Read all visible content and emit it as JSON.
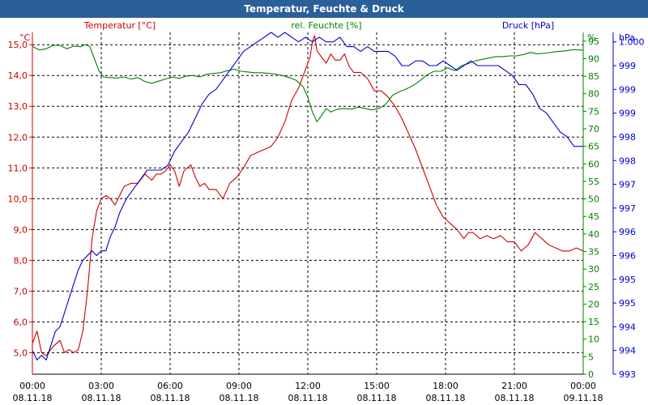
{
  "window": {
    "title": "Temperatur, Feuchte & Druck"
  },
  "chart_data": {
    "type": "line",
    "title": "Temperatur, Feuchte & Druck",
    "colors": {
      "temperature": "#cc0000",
      "humidity": "#008000",
      "pressure": "#0000cc",
      "grid": "#000000"
    },
    "x_ticks": [
      {
        "time": "00:00",
        "date": "08.11.18"
      },
      {
        "time": "03:00",
        "date": "08.11.18"
      },
      {
        "time": "06:00",
        "date": "08.11.18"
      },
      {
        "time": "09:00",
        "date": "08.11.18"
      },
      {
        "time": "12:00",
        "date": "08.11.18"
      },
      {
        "time": "15:00",
        "date": "08.11.18"
      },
      {
        "time": "18:00",
        "date": "08.11.18"
      },
      {
        "time": "21:00",
        "date": "08.11.18"
      },
      {
        "time": "00:00",
        "date": "09.11.18"
      }
    ],
    "xlim_hours": [
      0,
      24
    ],
    "axes": {
      "temperature": {
        "unit": "°C",
        "label": "Temperatur [°C]",
        "ylim": [
          4.3,
          15.4
        ],
        "ticks": [
          5.0,
          6.0,
          7.0,
          8.0,
          9.0,
          10.0,
          11.0,
          12.0,
          13.0,
          14.0,
          15.0
        ],
        "tick_labels": [
          "5,0",
          "6,0",
          "7,0",
          "8,0",
          "9,0",
          "10,0",
          "11,0",
          "12,0",
          "13,0",
          "14,0",
          "15,0"
        ]
      },
      "humidity": {
        "unit": "%",
        "label": "rel. Feuchte [%]",
        "ylim": [
          0,
          97.5
        ],
        "ticks": [
          0,
          5,
          10,
          15,
          20,
          25,
          30,
          35,
          40,
          45,
          50,
          55,
          60,
          65,
          70,
          75,
          80,
          85,
          90,
          95
        ],
        "tick_labels": [
          "0",
          "5",
          "10",
          "15",
          "20",
          "25",
          "30",
          "35",
          "40",
          "45",
          "50",
          "55",
          "60",
          "65",
          "70",
          "75",
          "80",
          "85",
          "90",
          "95"
        ]
      },
      "pressure": {
        "unit": "hPa",
        "label": "Druck [hPa]",
        "ylim": [
          993.0,
          1000.2
        ],
        "ticks": [
          993.0,
          993.5,
          994.0,
          994.5,
          995.0,
          995.5,
          996.0,
          996.5,
          997.0,
          997.5,
          998.0,
          998.5,
          999.0,
          999.5,
          1000.0
        ],
        "tick_labels": [
          "993",
          "994",
          "994",
          "995",
          "995",
          "996",
          "996",
          "997",
          "997",
          "998",
          "998",
          "999",
          "999",
          "999",
          "1.000"
        ]
      }
    },
    "series": [
      {
        "name": "Temperatur [°C]",
        "axis": "temperature",
        "points": [
          [
            0,
            5.3
          ],
          [
            0.2,
            5.7
          ],
          [
            0.4,
            5.0
          ],
          [
            0.6,
            4.9
          ],
          [
            0.9,
            5.2
          ],
          [
            1.2,
            5.4
          ],
          [
            1.4,
            5.0
          ],
          [
            1.6,
            5.1
          ],
          [
            1.8,
            5.0
          ],
          [
            2.0,
            5.1
          ],
          [
            2.2,
            5.7
          ],
          [
            2.4,
            7.0
          ],
          [
            2.6,
            8.7
          ],
          [
            2.8,
            9.6
          ],
          [
            3.0,
            10.0
          ],
          [
            3.2,
            10.1
          ],
          [
            3.4,
            10.0
          ],
          [
            3.6,
            9.8
          ],
          [
            3.8,
            10.1
          ],
          [
            4.0,
            10.4
          ],
          [
            4.3,
            10.5
          ],
          [
            4.6,
            10.5
          ],
          [
            4.9,
            10.8
          ],
          [
            5.2,
            10.6
          ],
          [
            5.4,
            10.8
          ],
          [
            5.6,
            10.8
          ],
          [
            5.8,
            10.9
          ],
          [
            6.0,
            11.1
          ],
          [
            6.2,
            10.9
          ],
          [
            6.4,
            10.4
          ],
          [
            6.6,
            10.9
          ],
          [
            6.9,
            11.1
          ],
          [
            7.1,
            10.7
          ],
          [
            7.3,
            10.4
          ],
          [
            7.5,
            10.5
          ],
          [
            7.7,
            10.3
          ],
          [
            8.0,
            10.3
          ],
          [
            8.3,
            10.0
          ],
          [
            8.6,
            10.5
          ],
          [
            8.9,
            10.7
          ],
          [
            9.2,
            11.0
          ],
          [
            9.5,
            11.4
          ],
          [
            9.8,
            11.5
          ],
          [
            10.1,
            11.6
          ],
          [
            10.4,
            11.7
          ],
          [
            10.7,
            12.0
          ],
          [
            11.0,
            12.5
          ],
          [
            11.3,
            13.2
          ],
          [
            11.6,
            13.6
          ],
          [
            11.9,
            14.2
          ],
          [
            12.1,
            14.6
          ],
          [
            12.2,
            15.1
          ],
          [
            12.3,
            15.3
          ],
          [
            12.4,
            14.8
          ],
          [
            12.6,
            14.6
          ],
          [
            12.8,
            14.4
          ],
          [
            13.0,
            14.7
          ],
          [
            13.2,
            14.5
          ],
          [
            13.4,
            14.5
          ],
          [
            13.6,
            14.7
          ],
          [
            13.8,
            14.3
          ],
          [
            14.0,
            14.1
          ],
          [
            14.3,
            14.1
          ],
          [
            14.6,
            13.9
          ],
          [
            14.9,
            13.5
          ],
          [
            15.2,
            13.5
          ],
          [
            15.5,
            13.3
          ],
          [
            15.8,
            13.0
          ],
          [
            16.1,
            12.6
          ],
          [
            16.4,
            12.1
          ],
          [
            16.7,
            11.6
          ],
          [
            17.0,
            11.0
          ],
          [
            17.3,
            10.4
          ],
          [
            17.6,
            9.8
          ],
          [
            17.9,
            9.4
          ],
          [
            18.2,
            9.2
          ],
          [
            18.5,
            9.0
          ],
          [
            18.8,
            8.7
          ],
          [
            19.0,
            8.9
          ],
          [
            19.2,
            8.9
          ],
          [
            19.5,
            8.7
          ],
          [
            19.8,
            8.8
          ],
          [
            20.1,
            8.7
          ],
          [
            20.4,
            8.8
          ],
          [
            20.7,
            8.6
          ],
          [
            21.0,
            8.6
          ],
          [
            21.3,
            8.3
          ],
          [
            21.6,
            8.5
          ],
          [
            21.9,
            8.9
          ],
          [
            22.2,
            8.7
          ],
          [
            22.5,
            8.5
          ],
          [
            22.8,
            8.4
          ],
          [
            23.1,
            8.3
          ],
          [
            23.4,
            8.3
          ],
          [
            23.7,
            8.4
          ],
          [
            24.0,
            8.3
          ]
        ]
      },
      {
        "name": "rel. Feuchte [%]",
        "axis": "humidity",
        "points": [
          [
            0,
            93.5
          ],
          [
            0.3,
            92.5
          ],
          [
            0.6,
            92.8
          ],
          [
            0.9,
            93.8
          ],
          [
            1.2,
            93.8
          ],
          [
            1.5,
            92.8
          ],
          [
            1.8,
            93.6
          ],
          [
            2.1,
            93.4
          ],
          [
            2.3,
            94.0
          ],
          [
            2.5,
            93.5
          ],
          [
            2.7,
            90.0
          ],
          [
            2.9,
            86.5
          ],
          [
            3.1,
            84.8
          ],
          [
            3.4,
            84.6
          ],
          [
            3.7,
            84.5
          ],
          [
            4.0,
            84.8
          ],
          [
            4.3,
            84.2
          ],
          [
            4.6,
            84.6
          ],
          [
            4.9,
            83.5
          ],
          [
            5.2,
            83.0
          ],
          [
            5.5,
            83.6
          ],
          [
            5.8,
            84.2
          ],
          [
            6.1,
            84.8
          ],
          [
            6.4,
            84.4
          ],
          [
            6.7,
            85.0
          ],
          [
            7.0,
            85.2
          ],
          [
            7.3,
            84.8
          ],
          [
            7.6,
            85.6
          ],
          [
            7.9,
            85.8
          ],
          [
            8.2,
            86.0
          ],
          [
            8.5,
            86.6
          ],
          [
            8.8,
            87.0
          ],
          [
            9.1,
            86.4
          ],
          [
            9.4,
            86.2
          ],
          [
            9.7,
            86.0
          ],
          [
            10.0,
            86.0
          ],
          [
            10.3,
            85.8
          ],
          [
            10.6,
            85.6
          ],
          [
            10.9,
            85.2
          ],
          [
            11.2,
            84.6
          ],
          [
            11.5,
            83.8
          ],
          [
            11.8,
            82.0
          ],
          [
            12.0,
            79.0
          ],
          [
            12.2,
            74.8
          ],
          [
            12.4,
            72.0
          ],
          [
            12.6,
            73.8
          ],
          [
            12.8,
            75.8
          ],
          [
            13.0,
            74.8
          ],
          [
            13.3,
            75.6
          ],
          [
            13.6,
            75.8
          ],
          [
            13.9,
            75.6
          ],
          [
            14.2,
            76.2
          ],
          [
            14.5,
            75.8
          ],
          [
            14.8,
            75.4
          ],
          [
            15.1,
            75.8
          ],
          [
            15.4,
            77.0
          ],
          [
            15.7,
            79.6
          ],
          [
            16.0,
            80.6
          ],
          [
            16.3,
            81.4
          ],
          [
            16.6,
            82.4
          ],
          [
            16.9,
            83.8
          ],
          [
            17.2,
            85.4
          ],
          [
            17.5,
            86.4
          ],
          [
            17.8,
            86.4
          ],
          [
            18.1,
            87.4
          ],
          [
            18.4,
            86.6
          ],
          [
            18.7,
            88.0
          ],
          [
            19.0,
            88.6
          ],
          [
            19.3,
            89.4
          ],
          [
            19.6,
            89.8
          ],
          [
            19.9,
            90.2
          ],
          [
            20.2,
            90.6
          ],
          [
            20.5,
            90.6
          ],
          [
            20.8,
            90.8
          ],
          [
            21.1,
            90.8
          ],
          [
            21.4,
            91.2
          ],
          [
            21.7,
            91.8
          ],
          [
            22.0,
            91.4
          ],
          [
            22.4,
            91.6
          ],
          [
            22.8,
            92.0
          ],
          [
            23.2,
            92.2
          ],
          [
            23.6,
            92.6
          ],
          [
            24.0,
            92.4
          ]
        ]
      },
      {
        "name": "Druck [hPa]",
        "axis": "pressure",
        "points": [
          [
            0,
            993.5
          ],
          [
            0.2,
            993.3
          ],
          [
            0.4,
            993.4
          ],
          [
            0.6,
            993.3
          ],
          [
            0.8,
            993.6
          ],
          [
            1.0,
            993.9
          ],
          [
            1.2,
            994.0
          ],
          [
            1.4,
            994.3
          ],
          [
            1.6,
            994.6
          ],
          [
            1.8,
            994.9
          ],
          [
            2.0,
            995.2
          ],
          [
            2.2,
            995.4
          ],
          [
            2.4,
            995.5
          ],
          [
            2.6,
            995.6
          ],
          [
            2.8,
            995.5
          ],
          [
            3.0,
            995.6
          ],
          [
            3.2,
            995.6
          ],
          [
            3.4,
            995.9
          ],
          [
            3.6,
            996.1
          ],
          [
            3.8,
            996.4
          ],
          [
            4.1,
            996.7
          ],
          [
            4.4,
            996.9
          ],
          [
            4.7,
            997.1
          ],
          [
            5.0,
            997.3
          ],
          [
            5.3,
            997.3
          ],
          [
            5.6,
            997.3
          ],
          [
            5.9,
            997.4
          ],
          [
            6.2,
            997.7
          ],
          [
            6.5,
            997.9
          ],
          [
            6.8,
            998.1
          ],
          [
            7.1,
            998.4
          ],
          [
            7.4,
            998.7
          ],
          [
            7.7,
            998.9
          ],
          [
            8.0,
            999.0
          ],
          [
            8.3,
            999.2
          ],
          [
            8.6,
            999.4
          ],
          [
            8.9,
            999.6
          ],
          [
            9.2,
            999.8
          ],
          [
            9.5,
            999.9
          ],
          [
            9.8,
            1000.0
          ],
          [
            10.1,
            1000.1
          ],
          [
            10.4,
            1000.2
          ],
          [
            10.7,
            1000.1
          ],
          [
            11.0,
            1000.2
          ],
          [
            11.3,
            1000.1
          ],
          [
            11.6,
            1000.0
          ],
          [
            11.9,
            1000.1
          ],
          [
            12.2,
            1000.0
          ],
          [
            12.5,
            1000.1
          ],
          [
            12.8,
            1000.0
          ],
          [
            13.1,
            1000.0
          ],
          [
            13.4,
            1000.1
          ],
          [
            13.7,
            999.9
          ],
          [
            14.0,
            999.9
          ],
          [
            14.3,
            999.8
          ],
          [
            14.6,
            999.9
          ],
          [
            14.9,
            999.8
          ],
          [
            15.2,
            999.8
          ],
          [
            15.5,
            999.8
          ],
          [
            15.8,
            999.7
          ],
          [
            16.1,
            999.5
          ],
          [
            16.4,
            999.5
          ],
          [
            16.7,
            999.6
          ],
          [
            17.0,
            999.6
          ],
          [
            17.3,
            999.5
          ],
          [
            17.6,
            999.5
          ],
          [
            17.9,
            999.6
          ],
          [
            18.2,
            999.5
          ],
          [
            18.5,
            999.4
          ],
          [
            18.8,
            999.5
          ],
          [
            19.1,
            999.6
          ],
          [
            19.4,
            999.5
          ],
          [
            19.7,
            999.5
          ],
          [
            20.0,
            999.5
          ],
          [
            20.3,
            999.5
          ],
          [
            20.6,
            999.4
          ],
          [
            20.9,
            999.3
          ],
          [
            21.2,
            999.1
          ],
          [
            21.5,
            999.1
          ],
          [
            21.8,
            998.9
          ],
          [
            22.1,
            998.6
          ],
          [
            22.4,
            998.5
          ],
          [
            22.7,
            998.3
          ],
          [
            23.0,
            998.1
          ],
          [
            23.3,
            998.0
          ],
          [
            23.6,
            997.8
          ],
          [
            23.8,
            997.8
          ],
          [
            24.0,
            997.8
          ]
        ]
      }
    ]
  }
}
